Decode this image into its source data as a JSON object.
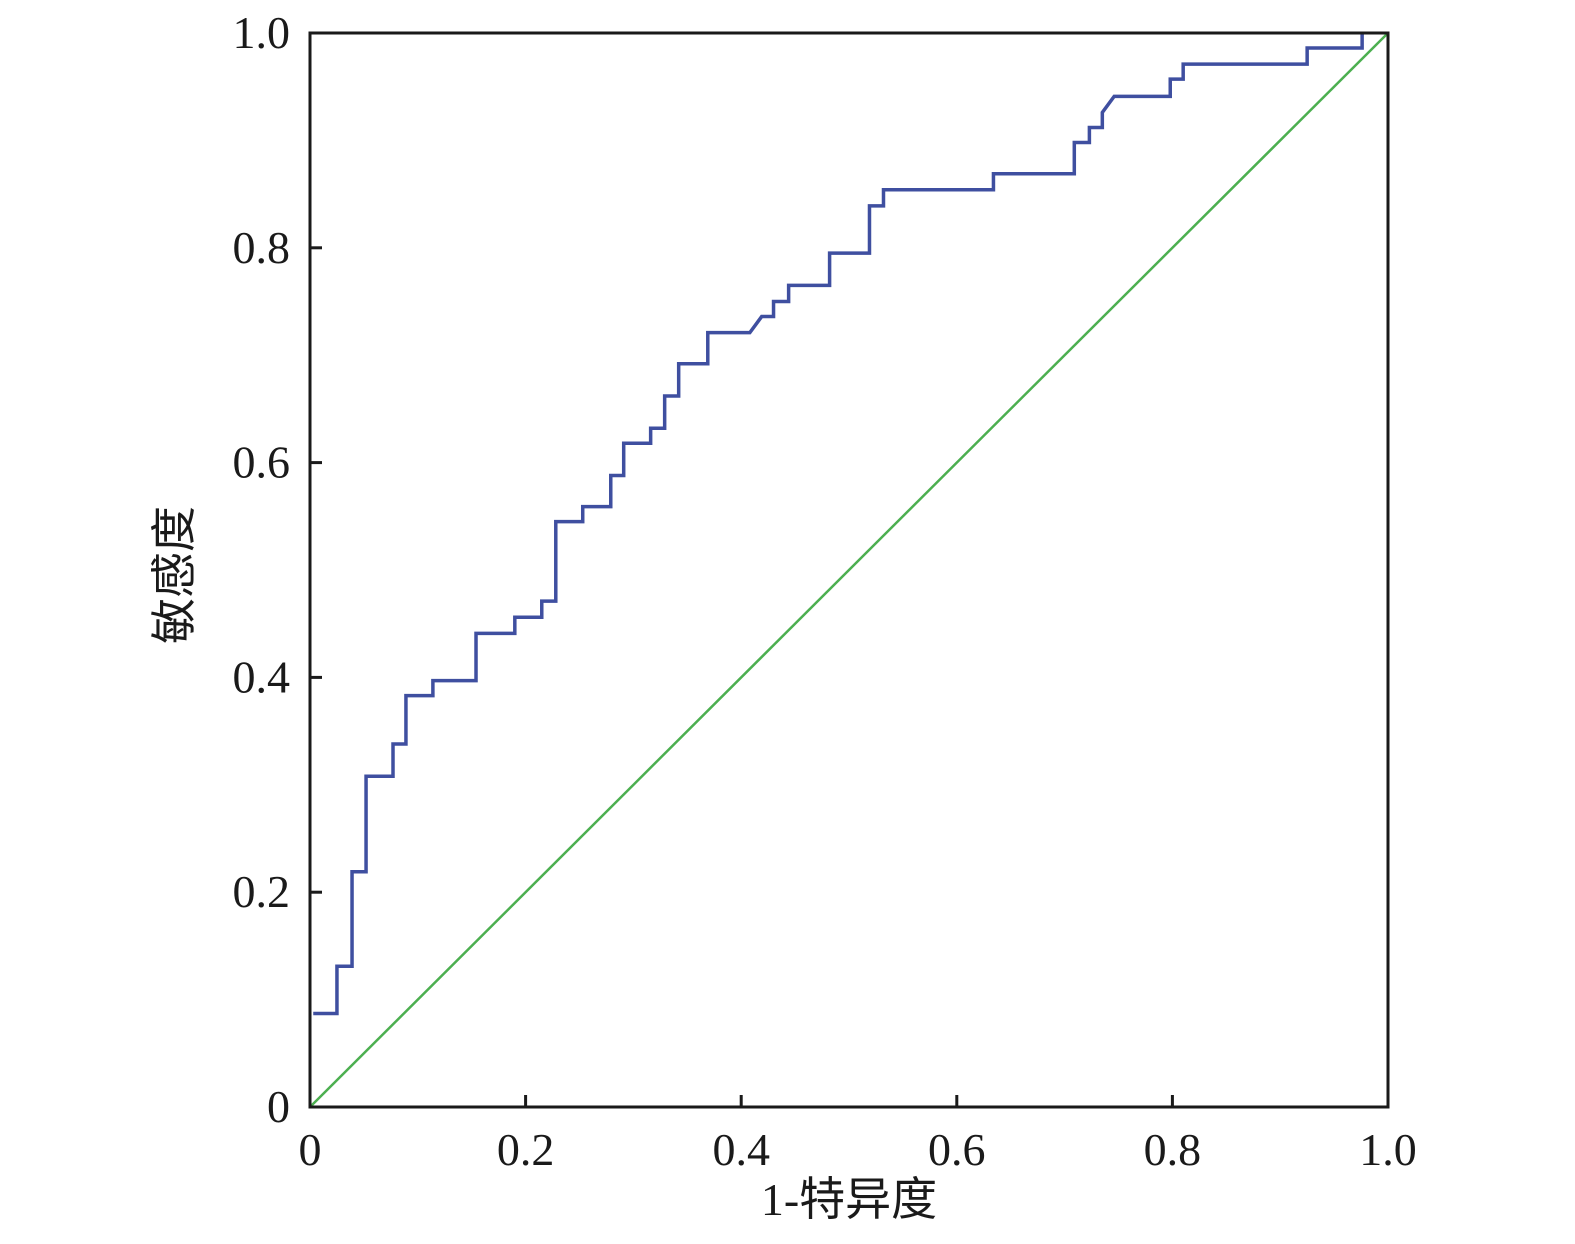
{
  "chart_data": {
    "type": "line",
    "title": "",
    "xlabel": "1-特异度",
    "ylabel": "敏感度",
    "xlim": [
      0,
      1.0
    ],
    "ylim": [
      0,
      1.0
    ],
    "x_ticks": [
      "0",
      "0.2",
      "0.4",
      "0.6",
      "0.8",
      "1.0"
    ],
    "y_ticks": [
      "0",
      "0.2",
      "0.4",
      "0.6",
      "0.8",
      "1.0"
    ],
    "grid": false,
    "legend": "none",
    "series": [
      {
        "color": "#3f4fa0",
        "style": "step",
        "x": [
          0.003,
          0.025,
          0.025,
          0.039,
          0.039,
          0.052,
          0.052,
          0.077,
          0.077,
          0.089,
          0.089,
          0.114,
          0.114,
          0.154,
          0.154,
          0.19,
          0.19,
          0.215,
          0.215,
          0.228,
          0.228,
          0.253,
          0.253,
          0.279,
          0.279,
          0.291,
          0.291,
          0.316,
          0.316,
          0.329,
          0.329,
          0.342,
          0.342,
          0.369,
          0.369,
          0.408,
          0.419,
          0.43,
          0.43,
          0.444,
          0.444,
          0.482,
          0.482,
          0.519,
          0.519,
          0.532,
          0.532,
          0.634,
          0.634,
          0.709,
          0.709,
          0.723,
          0.723,
          0.735,
          0.735,
          0.746,
          0.798,
          0.798,
          0.81,
          0.81,
          0.925,
          0.925,
          0.976,
          0.976
        ],
        "y": [
          0.087,
          0.087,
          0.131,
          0.131,
          0.219,
          0.219,
          0.308,
          0.308,
          0.338,
          0.338,
          0.383,
          0.383,
          0.397,
          0.397,
          0.441,
          0.441,
          0.456,
          0.456,
          0.471,
          0.471,
          0.545,
          0.545,
          0.559,
          0.559,
          0.588,
          0.588,
          0.618,
          0.618,
          0.632,
          0.632,
          0.662,
          0.662,
          0.692,
          0.692,
          0.721,
          0.721,
          0.736,
          0.736,
          0.75,
          0.75,
          0.765,
          0.765,
          0.795,
          0.795,
          0.839,
          0.839,
          0.854,
          0.854,
          0.869,
          0.869,
          0.898,
          0.898,
          0.912,
          0.912,
          0.926,
          0.941,
          0.941,
          0.957,
          0.957,
          0.971,
          0.971,
          0.986,
          0.986,
          1.0
        ]
      },
      {
        "color": "#4caf50",
        "style": "reference",
        "x": [
          0,
          1.0
        ],
        "y": [
          0,
          1.0
        ]
      }
    ]
  }
}
